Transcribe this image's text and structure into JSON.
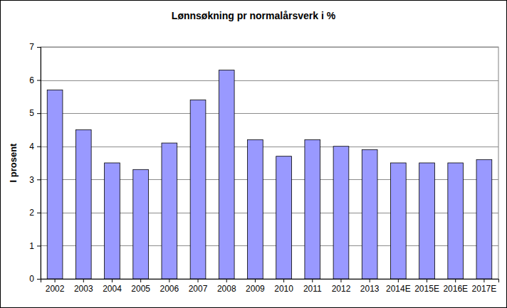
{
  "chart_data": {
    "type": "bar",
    "title": "Lønnsøkning pr normalårsverk i %",
    "y_label": "I prosent",
    "categories": [
      "2002",
      "2003",
      "2004",
      "2005",
      "2006",
      "2007",
      "2008",
      "2009",
      "2010",
      "2011",
      "2012",
      "2013",
      "2014E",
      "2015E",
      "2016E",
      "2017E"
    ],
    "values": [
      5.7,
      4.5,
      3.5,
      3.3,
      4.1,
      5.4,
      6.3,
      4.2,
      3.7,
      4.2,
      4.0,
      3.9,
      3.5,
      3.5,
      3.5,
      3.6
    ],
    "color": "#9999ff",
    "ylim": [
      0,
      7
    ],
    "yticks": [
      0,
      1,
      2,
      3,
      4,
      5,
      6,
      7
    ],
    "grid": true
  }
}
